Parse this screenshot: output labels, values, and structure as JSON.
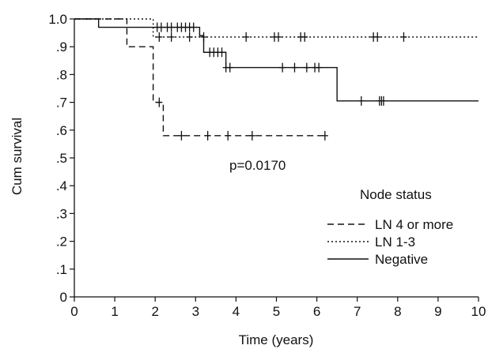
{
  "chart_data": {
    "type": "line",
    "subtype": "kaplan-meier step curves with censor marks",
    "xlabel": "Time (years)",
    "ylabel": "Cum survival",
    "xlim": [
      0,
      10
    ],
    "ylim": [
      0,
      1.0
    ],
    "x_ticks": [
      0,
      1,
      2,
      3,
      4,
      5,
      6,
      7,
      8,
      9,
      10
    ],
    "x_tick_labels": [
      "0",
      "1",
      "2",
      "3",
      "4",
      "5",
      "6",
      "7",
      "8",
      "9",
      "10"
    ],
    "y_ticks": [
      0,
      0.1,
      0.2,
      0.3,
      0.4,
      0.5,
      0.6,
      0.7,
      0.8,
      0.9,
      1.0
    ],
    "y_tick_labels": [
      "0",
      ".1",
      ".2",
      ".3",
      ".4",
      ".5",
      ".6",
      ".7",
      ".8",
      ".9",
      "1.0"
    ],
    "grid": false,
    "legend": {
      "title": "Node status",
      "placement": "right-center",
      "entries": [
        "LN 4 or more",
        "LN 1-3",
        "Negative"
      ]
    },
    "annotation": "p=0.0170",
    "series": [
      {
        "name": "LN 4 or more",
        "line_style": "dashed",
        "steps": [
          [
            0,
            1.0
          ],
          [
            1.3,
            0.9
          ],
          [
            1.95,
            0.7
          ],
          [
            2.2,
            0.58
          ],
          [
            6.2,
            0.58
          ]
        ],
        "censor_times": [
          2.1,
          2.65,
          3.3,
          3.8,
          4.4,
          6.2
        ]
      },
      {
        "name": "LN 1-3",
        "line_style": "dotted",
        "steps": [
          [
            0,
            1.0
          ],
          [
            1.95,
            0.935
          ],
          [
            10,
            0.935
          ]
        ],
        "censor_times": [
          2.1,
          2.4,
          2.85,
          3.2,
          4.25,
          4.95,
          5.05,
          5.6,
          5.7,
          7.4,
          7.5,
          8.15
        ]
      },
      {
        "name": "Negative",
        "line_style": "solid",
        "steps": [
          [
            0,
            1.0
          ],
          [
            0.6,
            0.97
          ],
          [
            3.1,
            0.94
          ],
          [
            3.2,
            0.88
          ],
          [
            3.75,
            0.825
          ],
          [
            6.5,
            0.705
          ],
          [
            10,
            0.705
          ]
        ],
        "censor_times": [
          2.05,
          2.15,
          2.3,
          2.4,
          2.55,
          2.65,
          2.75,
          2.85,
          2.95,
          3.35,
          3.45,
          3.55,
          3.65,
          3.75,
          3.85,
          5.15,
          5.45,
          5.75,
          5.95,
          6.05,
          7.1,
          7.55,
          7.6,
          7.65
        ]
      }
    ]
  }
}
